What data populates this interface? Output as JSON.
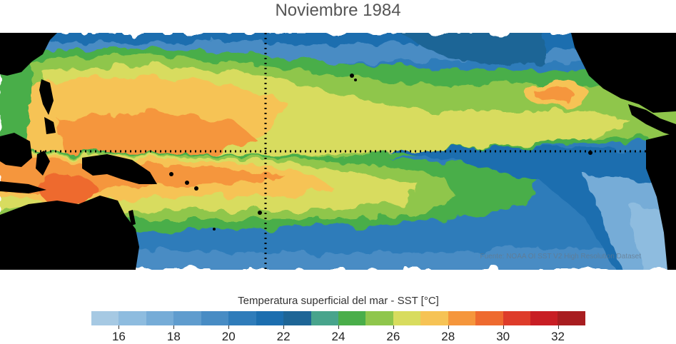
{
  "title": "Noviembre 1984",
  "source": "Fuente: NOAA OI SST V2 High Resolution Dataset",
  "colorbar": {
    "label": "Temperatura superficial del mar - SST  [°C]",
    "range": [
      15,
      33
    ],
    "step": 1,
    "colors": [
      "#a6c9e3",
      "#8ebcdf",
      "#76acd7",
      "#5f9cce",
      "#488cc4",
      "#2f7cba",
      "#1c6eaf",
      "#1e6596",
      "#48a48c",
      "#4aae4a",
      "#8fc64c",
      "#d8dc5e",
      "#f6c355",
      "#f5963c",
      "#ee6a2f",
      "#de3c2a",
      "#c81e24",
      "#a81d20"
    ],
    "ticks": [
      "16",
      "18",
      "20",
      "22",
      "24",
      "26",
      "28",
      "30",
      "32"
    ]
  },
  "map_data": {
    "region": "Pacífico tropical",
    "crosshair": {
      "lon": "180",
      "lat": "0"
    },
    "land_color": "#000000"
  }
}
